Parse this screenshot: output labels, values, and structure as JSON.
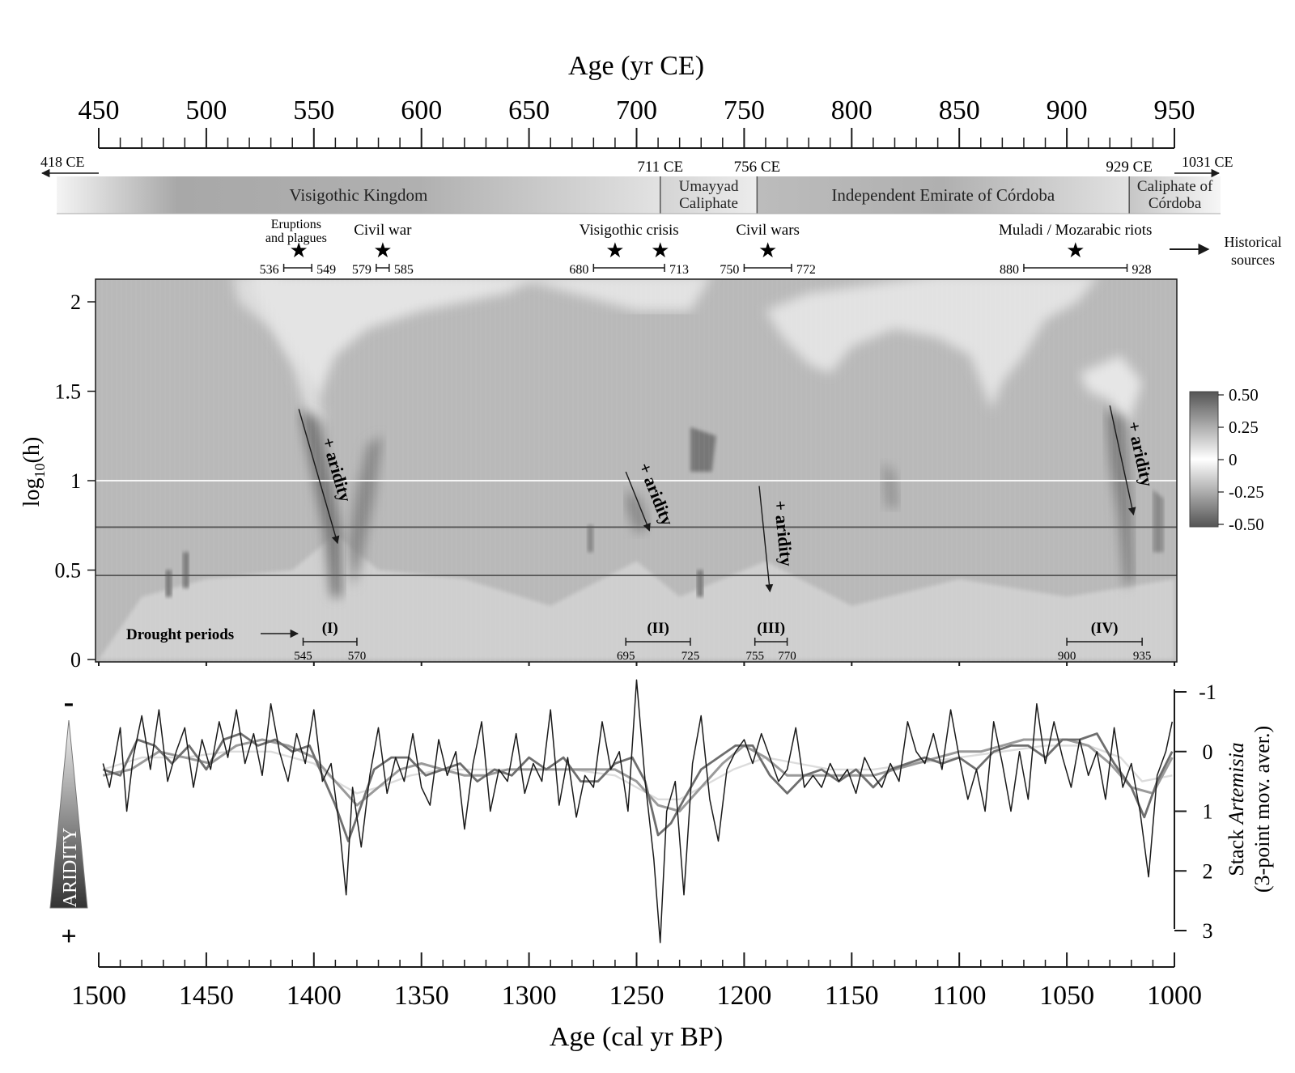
{
  "top_axis": {
    "label": "Age (yr CE)",
    "ticks": [
      450,
      500,
      550,
      600,
      650,
      700,
      750,
      800,
      850,
      900,
      950
    ]
  },
  "bottom_axis": {
    "label": "Age (cal yr BP)",
    "ticks": [
      1500,
      1450,
      1400,
      1350,
      1300,
      1250,
      1200,
      1150,
      1100,
      1050,
      1000
    ]
  },
  "periods_band": {
    "edge_left": "418 CE",
    "edge_right": "1031 CE",
    "periods": [
      {
        "name": "Visigothic Kingdom",
        "start": 418,
        "end": 711,
        "start_label": "",
        "end_label": "711 CE"
      },
      {
        "name": "Umayyad\nCaliphate",
        "start": 711,
        "end": 756,
        "start_label": "",
        "end_label": "756 CE"
      },
      {
        "name": "Independent Emirate of Córdoba",
        "start": 756,
        "end": 929,
        "start_label": "",
        "end_label": "929 CE"
      },
      {
        "name": "Caliphate of\nCórdoba",
        "start": 929,
        "end": 1031,
        "start_label": "",
        "end_label": ""
      }
    ]
  },
  "historical_events": {
    "side_label": "Historical\nsources",
    "events": [
      {
        "name": "Eruptions\nand plagues",
        "start": 536,
        "end": 549,
        "stars": [
          543
        ]
      },
      {
        "name": "Civil war",
        "start": 579,
        "end": 585,
        "stars": [
          582
        ]
      },
      {
        "name": "Visigothic crisis",
        "start": 680,
        "end": 713,
        "stars": [
          690,
          711
        ]
      },
      {
        "name": "Civil wars",
        "start": 750,
        "end": 772,
        "stars": [
          761
        ]
      },
      {
        "name": "Muladi / Mozarabic riots",
        "start": 880,
        "end": 928,
        "stars": [
          904
        ]
      }
    ]
  },
  "chart_data": [
    {
      "type": "heatmap",
      "title": "",
      "xlabel": "",
      "ylabel": "log10(h)",
      "ylabel_main": "log",
      "ylabel_sub": "10",
      "ylabel_tail": "(h)",
      "x_axis": "yr CE",
      "xlim": [
        450,
        950
      ],
      "ylim": [
        0,
        2.1
      ],
      "yticks": [
        "0",
        "0.5",
        "1",
        "1.5",
        "2"
      ],
      "colorbar": {
        "ticks": [
          "0.50",
          "0.25",
          "0",
          "-0.25",
          "-0.50"
        ],
        "range": [
          -0.5,
          0.5
        ]
      },
      "reference_lines": [
        1.0,
        0.74,
        0.47
      ],
      "aridity_label": "+ aridity",
      "aridity_arrows": [
        {
          "x1": 543,
          "y1": 1.4,
          "x2": 561,
          "y2": 0.65
        },
        {
          "x1": 695,
          "y1": 1.05,
          "x2": 706,
          "y2": 0.72
        },
        {
          "x1": 757,
          "y1": 0.97,
          "x2": 762,
          "y2": 0.38
        },
        {
          "x1": 920,
          "y1": 1.42,
          "x2": 931,
          "y2": 0.81
        }
      ],
      "drought_label": "Drought periods",
      "drought_periods": [
        {
          "id": "(I)",
          "start": 545,
          "end": 570
        },
        {
          "id": "(II)",
          "start": 695,
          "end": 725
        },
        {
          "id": "(III)",
          "start": 755,
          "end": 770
        },
        {
          "id": "(IV)",
          "start": 900,
          "end": 935
        }
      ]
    },
    {
      "type": "line",
      "title": "",
      "xlabel": "Age (cal yr BP)",
      "ylabel_pre": "Stack ",
      "ylabel_italic": "Artemisia",
      "ylabel_line2": "(3-point mov. aver.)",
      "xlim": [
        1500,
        1000
      ],
      "ylim": [
        -1,
        3
      ],
      "y_inverted": true,
      "yticks": [
        "-1",
        "0",
        "1",
        "2",
        "3"
      ],
      "aridity_indicator": {
        "label": "ARIDITY",
        "minus": "-",
        "plus": "+"
      },
      "series": [
        {
          "name": "",
          "color": "#1a1a1a",
          "x": [
            1498,
            1495,
            1490,
            1487,
            1484,
            1480,
            1476,
            1472,
            1468,
            1464,
            1460,
            1456,
            1452,
            1448,
            1444,
            1440,
            1436,
            1432,
            1428,
            1424,
            1420,
            1416,
            1412,
            1408,
            1404,
            1400,
            1396,
            1392,
            1388,
            1385,
            1382,
            1378,
            1374,
            1370,
            1366,
            1362,
            1358,
            1354,
            1350,
            1346,
            1342,
            1338,
            1334,
            1330,
            1326,
            1322,
            1318,
            1314,
            1310,
            1306,
            1302,
            1298,
            1294,
            1290,
            1286,
            1282,
            1278,
            1274,
            1270,
            1266,
            1262,
            1258,
            1254,
            1250,
            1246,
            1242,
            1239,
            1236,
            1232,
            1228,
            1224,
            1220,
            1216,
            1212,
            1208,
            1204,
            1200,
            1196,
            1192,
            1188,
            1184,
            1180,
            1176,
            1172,
            1168,
            1164,
            1160,
            1156,
            1152,
            1148,
            1144,
            1140,
            1136,
            1132,
            1128,
            1124,
            1120,
            1116,
            1112,
            1108,
            1104,
            1100,
            1096,
            1092,
            1088,
            1084,
            1080,
            1076,
            1072,
            1068,
            1064,
            1060,
            1056,
            1052,
            1048,
            1044,
            1040,
            1036,
            1032,
            1028,
            1024,
            1020,
            1016,
            1012,
            1008,
            1004,
            1001
          ],
          "y": [
            0.2,
            0.6,
            -0.4,
            1.0,
            0.1,
            -0.6,
            0.3,
            -0.7,
            0.5,
            0.0,
            -0.4,
            0.6,
            -0.2,
            0.3,
            -0.5,
            0.1,
            -0.7,
            0.2,
            -0.3,
            0.4,
            -0.8,
            0.0,
            0.5,
            -0.3,
            0.2,
            -0.7,
            0.5,
            0.2,
            1.3,
            2.4,
            0.6,
            1.6,
            0.4,
            -0.4,
            0.7,
            0.1,
            0.5,
            -0.3,
            0.6,
            0.9,
            -0.2,
            0.4,
            0.0,
            1.3,
            0.2,
            -0.5,
            1.0,
            0.3,
            0.5,
            -0.3,
            0.7,
            0.2,
            0.5,
            -0.7,
            0.9,
            0.1,
            1.1,
            0.4,
            0.6,
            -0.5,
            0.3,
            0.0,
            1.0,
            -1.2,
            0.5,
            1.8,
            3.2,
            1.0,
            0.5,
            2.4,
            0.2,
            -0.6,
            0.8,
            1.5,
            0.3,
            0.0,
            -0.2,
            0.2,
            -0.3,
            0.1,
            0.5,
            0.3,
            -0.4,
            0.6,
            0.4,
            0.6,
            0.2,
            0.5,
            0.3,
            0.7,
            0.1,
            0.4,
            0.6,
            0.2,
            0.5,
            -0.5,
            0.0,
            0.2,
            -0.3,
            0.3,
            -0.7,
            0.1,
            0.8,
            0.3,
            1.0,
            -0.5,
            0.2,
            1.0,
            0.0,
            0.8,
            -0.8,
            0.2,
            -0.5,
            0.1,
            0.6,
            -0.2,
            0.4,
            0.0,
            0.8,
            -0.4,
            0.6,
            0.2,
            1.0,
            2.1,
            0.4,
            0.0,
            -0.5
          ]
        },
        {
          "name": "",
          "color": "#6e6e6e",
          "x": [
            1498,
            1490,
            1482,
            1474,
            1466,
            1458,
            1450,
            1442,
            1434,
            1426,
            1418,
            1410,
            1402,
            1396,
            1390,
            1384,
            1378,
            1372,
            1364,
            1356,
            1348,
            1340,
            1332,
            1324,
            1316,
            1308,
            1300,
            1292,
            1284,
            1276,
            1268,
            1260,
            1252,
            1246,
            1240,
            1234,
            1228,
            1220,
            1212,
            1204,
            1196,
            1188,
            1180,
            1172,
            1164,
            1156,
            1148,
            1140,
            1132,
            1124,
            1116,
            1108,
            1100,
            1092,
            1084,
            1076,
            1068,
            1060,
            1052,
            1044,
            1036,
            1028,
            1020,
            1014,
            1008,
            1001
          ],
          "y": [
            0.3,
            0.4,
            -0.2,
            -0.1,
            0.2,
            -0.1,
            0.3,
            -0.2,
            -0.3,
            -0.1,
            -0.2,
            0.0,
            -0.1,
            0.4,
            0.9,
            1.5,
            0.9,
            0.3,
            0.1,
            0.1,
            0.4,
            0.3,
            0.2,
            0.5,
            0.3,
            0.4,
            0.1,
            0.3,
            0.1,
            0.5,
            0.5,
            0.2,
            0.1,
            0.5,
            1.4,
            1.2,
            0.8,
            0.3,
            0.1,
            -0.1,
            -0.1,
            0.4,
            0.7,
            0.4,
            0.3,
            0.5,
            0.3,
            0.6,
            0.3,
            0.2,
            0.1,
            0.2,
            0.1,
            0.3,
            0.0,
            -0.1,
            -0.1,
            0.1,
            -0.2,
            -0.2,
            -0.3,
            0.2,
            0.6,
            1.1,
            0.5,
            0.0
          ]
        },
        {
          "name": "",
          "color": "#9a9a9a",
          "x": [
            1498,
            1485,
            1472,
            1460,
            1448,
            1436,
            1424,
            1412,
            1400,
            1390,
            1380,
            1370,
            1360,
            1350,
            1340,
            1330,
            1320,
            1310,
            1300,
            1290,
            1280,
            1270,
            1260,
            1250,
            1240,
            1230,
            1220,
            1210,
            1200,
            1190,
            1180,
            1170,
            1160,
            1150,
            1140,
            1130,
            1120,
            1110,
            1100,
            1090,
            1080,
            1070,
            1060,
            1050,
            1040,
            1030,
            1020,
            1010,
            1001
          ],
          "y": [
            0.4,
            0.3,
            0.0,
            0.1,
            0.2,
            -0.1,
            -0.2,
            -0.1,
            0.1,
            0.5,
            0.9,
            0.6,
            0.3,
            0.2,
            0.3,
            0.4,
            0.4,
            0.3,
            0.3,
            0.3,
            0.3,
            0.3,
            0.3,
            0.5,
            0.9,
            1.0,
            0.6,
            0.2,
            -0.1,
            0.1,
            0.4,
            0.4,
            0.4,
            0.4,
            0.4,
            0.3,
            0.2,
            0.1,
            0.0,
            0.0,
            -0.1,
            -0.2,
            -0.2,
            -0.2,
            -0.1,
            0.2,
            0.6,
            0.7,
            0.1
          ]
        },
        {
          "name": "",
          "color": "#dcdcdc",
          "x": [
            1498,
            1480,
            1460,
            1440,
            1420,
            1400,
            1390,
            1380,
            1370,
            1355,
            1340,
            1320,
            1300,
            1280,
            1260,
            1250,
            1240,
            1230,
            1220,
            1205,
            1190,
            1175,
            1160,
            1140,
            1120,
            1100,
            1080,
            1060,
            1040,
            1025,
            1015,
            1001
          ],
          "y": [
            0.3,
            0.1,
            0.1,
            0.0,
            0.0,
            0.2,
            0.5,
            0.7,
            0.6,
            0.4,
            0.3,
            0.3,
            0.3,
            0.3,
            0.4,
            0.6,
            0.8,
            0.8,
            0.6,
            0.3,
            0.1,
            0.2,
            0.3,
            0.3,
            0.2,
            0.1,
            0.0,
            -0.1,
            -0.1,
            0.1,
            0.5,
            0.4
          ]
        }
      ]
    }
  ]
}
